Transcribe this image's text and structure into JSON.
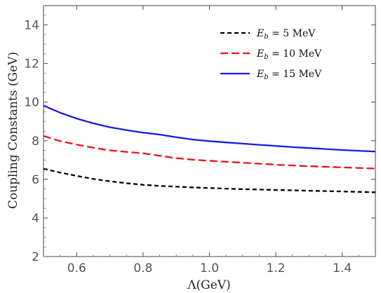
{
  "chart_data": {
    "type": "line",
    "xlabel": "Λ(GeV)",
    "ylabel": "Coupling Constants (GeV)",
    "xlim": [
      0.5,
      1.5
    ],
    "ylim": [
      2,
      15
    ],
    "x_ticks": [
      "0.6",
      "0.8",
      "1.0",
      "1.2",
      "1.4"
    ],
    "y_ticks": [
      "2",
      "4",
      "6",
      "8",
      "10",
      "12",
      "14"
    ],
    "grid": false,
    "legend_position": "top-right",
    "x": [
      0.5,
      0.55,
      0.6,
      0.65,
      0.7,
      0.75,
      0.8,
      0.85,
      0.9,
      0.95,
      1.0,
      1.05,
      1.1,
      1.15,
      1.2,
      1.25,
      1.3,
      1.35,
      1.4,
      1.45,
      1.5
    ],
    "series": [
      {
        "name": "E_b = 5 MeV",
        "label_main": "E",
        "label_sub": "b",
        "label_rest": " = 5 MeV",
        "color": "#000000",
        "dash": "6,4",
        "values": [
          6.55,
          6.35,
          6.18,
          6.02,
          5.9,
          5.8,
          5.72,
          5.66,
          5.62,
          5.58,
          5.55,
          5.52,
          5.49,
          5.47,
          5.45,
          5.43,
          5.41,
          5.39,
          5.37,
          5.35,
          5.33
        ]
      },
      {
        "name": "E_b = 10 MeV",
        "label_main": "E",
        "label_sub": "b",
        "label_rest": " = 10 MeV",
        "color": "#e8141c",
        "dash": "11,5",
        "values": [
          8.25,
          7.98,
          7.8,
          7.64,
          7.5,
          7.42,
          7.35,
          7.22,
          7.1,
          7.02,
          6.96,
          6.91,
          6.86,
          6.81,
          6.76,
          6.72,
          6.68,
          6.65,
          6.62,
          6.59,
          6.56
        ]
      },
      {
        "name": "E_b = 15 MeV",
        "label_main": "E",
        "label_sub": "b",
        "label_rest": " = 15 MeV",
        "color": "#1a1ae8",
        "dash": "",
        "values": [
          9.82,
          9.45,
          9.15,
          8.9,
          8.7,
          8.55,
          8.42,
          8.32,
          8.18,
          8.06,
          7.98,
          7.91,
          7.85,
          7.79,
          7.73,
          7.67,
          7.62,
          7.57,
          7.52,
          7.48,
          7.44
        ]
      }
    ]
  }
}
